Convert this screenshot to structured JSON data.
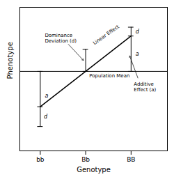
{
  "chart_data": {
    "type": "line",
    "x_label": "Genotype",
    "y_label": "Phenotype",
    "categories": [
      "bb",
      "Bb",
      "BB"
    ],
    "linear_values": [
      0.1,
      0.42,
      0.74
    ],
    "actual_values": [
      -0.08,
      0.62,
      0.74
    ],
    "population_mean": 0.42,
    "dominance_top": 0.82,
    "ylim": [
      -0.3,
      1.0
    ],
    "yticks": [],
    "tick_labels": "x",
    "annotations": {
      "dominance": "Dominance\nDeviation (d)",
      "additive": "Additive\nEffect (a)",
      "linear": "Linear Effect",
      "population_mean": "Population Mean"
    },
    "segment_labels": {
      "additive": "a",
      "dominance": "d"
    }
  }
}
